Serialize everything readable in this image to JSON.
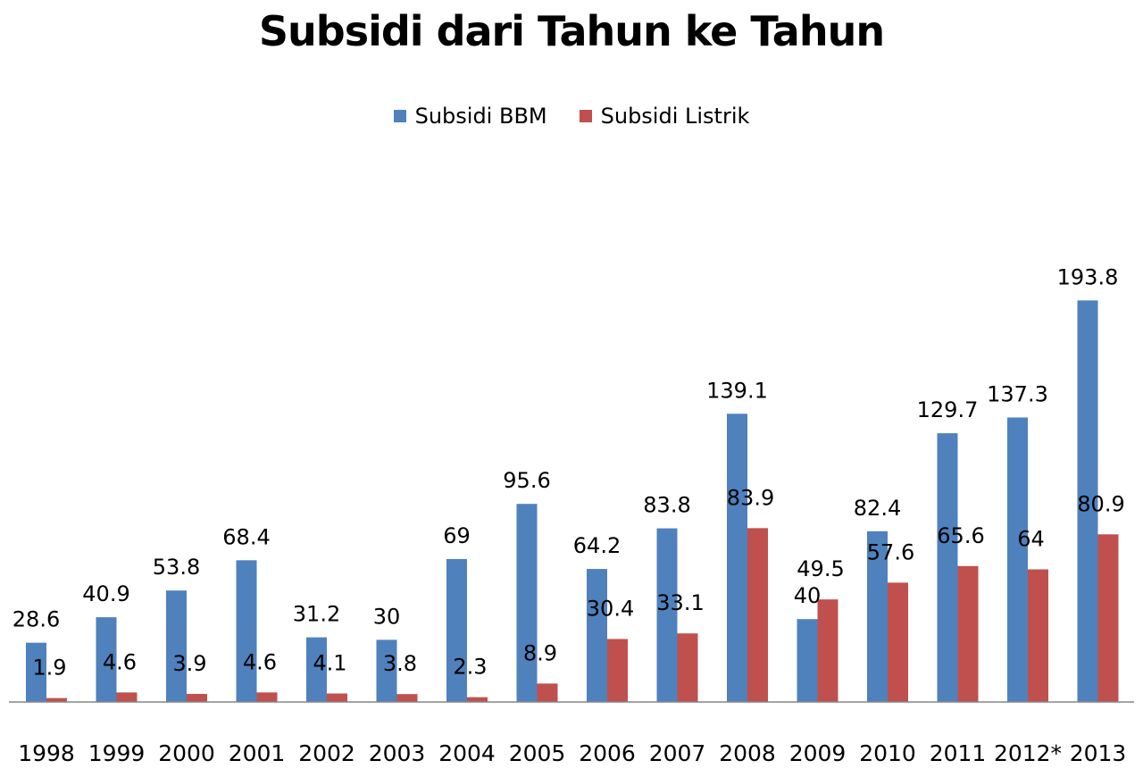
{
  "chart_data": {
    "type": "bar",
    "title": "Subsidi dari Tahun ke Tahun",
    "xlabel": "",
    "ylabel": "",
    "ylim": [
      0,
      200
    ],
    "grid": false,
    "legend_position": "top",
    "categories": [
      "1998",
      "1999",
      "2000",
      "2001",
      "2002",
      "2003",
      "2004",
      "2005",
      "2006",
      "2007",
      "2008",
      "2009",
      "2010",
      "2011",
      "2012*",
      "2013"
    ],
    "series": [
      {
        "name": "Subsidi BBM",
        "color": "#4F81BD",
        "values": [
          28.6,
          40.9,
          53.8,
          68.4,
          31.2,
          30,
          69,
          95.6,
          64.2,
          83.8,
          139.1,
          40,
          82.4,
          129.7,
          137.3,
          193.8
        ]
      },
      {
        "name": "Subsidi Listrik",
        "color": "#C0504D",
        "values": [
          1.9,
          4.6,
          3.9,
          4.6,
          4.1,
          3.8,
          2.3,
          8.9,
          30.4,
          33.1,
          83.9,
          49.5,
          57.6,
          65.6,
          64,
          80.9
        ]
      }
    ]
  }
}
